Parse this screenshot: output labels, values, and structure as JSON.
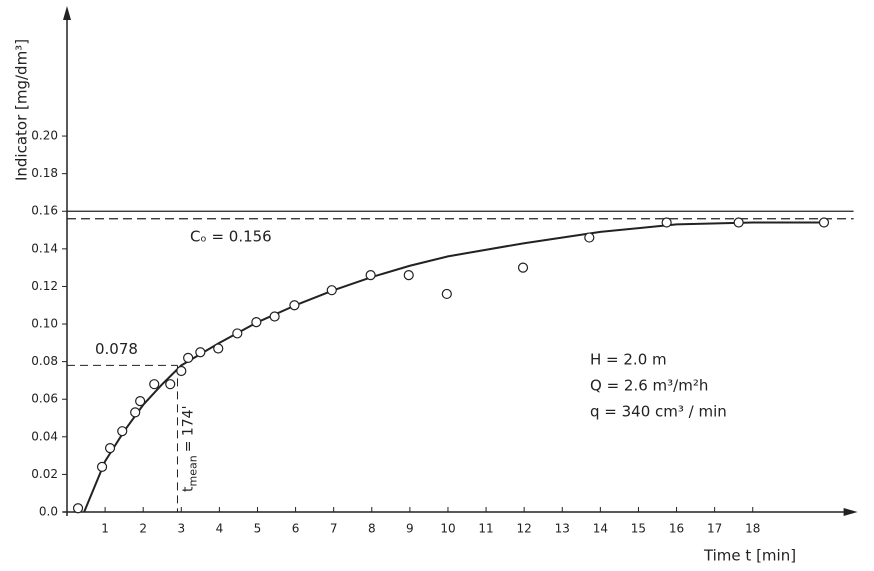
{
  "chart_data": {
    "type": "scatter",
    "xlabel": "Time   t [min]",
    "ylabel": "Indicator  [mg/dm³]",
    "color": "#222222",
    "x": [
      0.29,
      0.92,
      1.13,
      1.45,
      1.79,
      1.92,
      2.29,
      2.71,
      3.0,
      3.18,
      3.5,
      3.97,
      4.47,
      4.97,
      5.45,
      5.97,
      6.95,
      7.97,
      8.97,
      9.97,
      11.97,
      13.71,
      15.74,
      17.63,
      19.87
    ],
    "values": [
      0.002,
      0.024,
      0.034,
      0.043,
      0.053,
      0.059,
      0.068,
      0.068,
      0.075,
      0.082,
      0.085,
      0.087,
      0.095,
      0.101,
      0.104,
      0.11,
      0.118,
      0.126,
      0.126,
      0.116,
      0.13,
      0.146,
      0.154,
      0.154,
      0.154
    ],
    "curve": {
      "x": [
        0.45,
        1,
        1.5,
        2,
        2.5,
        3,
        4,
        5,
        6,
        7,
        8,
        9,
        10,
        12,
        14,
        16,
        18,
        19.9
      ],
      "values": [
        0,
        0.027,
        0.043,
        0.057,
        0.068,
        0.078,
        0.09,
        0.101,
        0.11,
        0.118,
        0.125,
        0.131,
        0.136,
        0.143,
        0.149,
        0.153,
        0.154,
        0.154
      ]
    },
    "xlim": [
      0,
      20.7
    ],
    "ylim": [
      0,
      0.266
    ],
    "xticks": [
      1,
      2,
      3,
      4,
      5,
      6,
      7,
      8,
      9,
      10,
      11,
      12,
      13,
      14,
      15,
      16,
      17,
      18
    ],
    "yticks": [
      {
        "value": 0,
        "label": "0.0"
      },
      0.02,
      0.04,
      0.06,
      0.08,
      {
        "value": 0.1,
        "label": "0.10"
      },
      0.12,
      0.14,
      0.16,
      0.18,
      {
        "value": 0.2,
        "label": "0.20"
      }
    ],
    "reference_lines": [
      {
        "value": 0.16,
        "style": "solid"
      },
      {
        "value": 0.156,
        "style": "dashed",
        "label": "Cₒ = 0.156"
      }
    ],
    "mean_marker": {
      "x": 2.9,
      "y": 0.078,
      "y_label": "0.078",
      "t_symbol": "t",
      "t_sub": "mean",
      "t_text": "= 174'"
    },
    "annotations": [
      "H = 2.0 m",
      "Q = 2.6 m³/m²h",
      "q = 340 cm³ / min"
    ]
  }
}
